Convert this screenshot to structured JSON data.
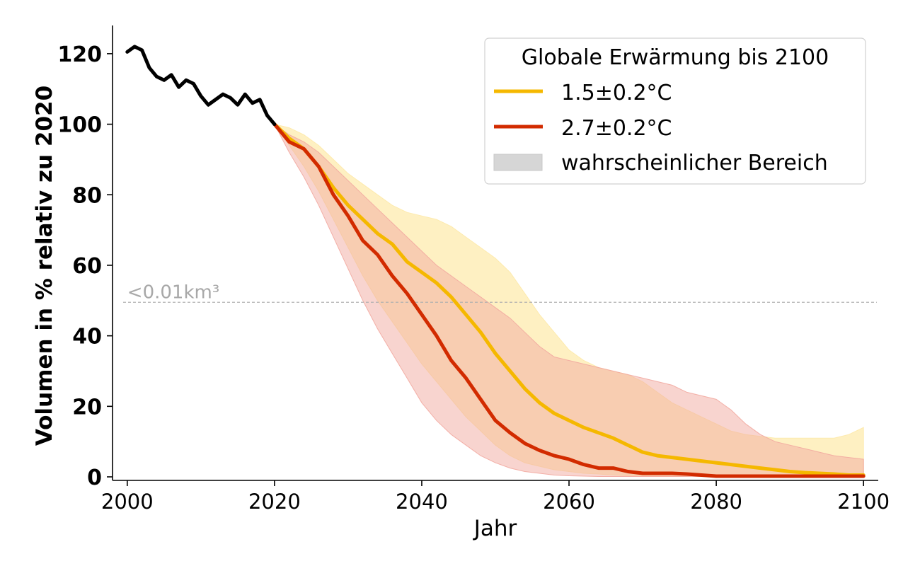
{
  "chart_data": {
    "type": "line",
    "xlabel": "Jahr",
    "ylabel": "Volumen in % relativ zu 2020",
    "xlim": [
      1998,
      2102
    ],
    "ylim": [
      -1,
      128
    ],
    "xticks": [
      "2000",
      "2020",
      "2040",
      "2060",
      "2080",
      "2100"
    ],
    "yticks": [
      "0",
      "20",
      "40",
      "60",
      "80",
      "100",
      "120"
    ],
    "grid": false,
    "legend_position": "top-right",
    "threshold": {
      "y": 49.5,
      "label": "<0.01km³",
      "color": "#b0b0b0"
    },
    "legend": {
      "title": "Globale Erwärmung bis 2100",
      "range_label": "wahrscheinlicher Bereich",
      "range_color": "#d6d6d6"
    },
    "observed": {
      "name": "",
      "color": "#000000",
      "x": [
        2000,
        2001,
        2002,
        2003,
        2004,
        2005,
        2006,
        2007,
        2008,
        2009,
        2010,
        2011,
        2012,
        2013,
        2014,
        2015,
        2016,
        2017,
        2018,
        2019,
        2020
      ],
      "y": [
        120.5,
        122,
        121,
        116,
        113.5,
        112.5,
        114,
        110.5,
        112.5,
        111.5,
        108,
        105.5,
        107,
        108.5,
        107.5,
        105.5,
        108.5,
        106,
        107,
        102.5,
        100
      ]
    },
    "series": [
      {
        "name": "1.5±0.2°C",
        "color": "#f5b800",
        "band_color": "#fde9a8",
        "x": [
          2020,
          2022,
          2024,
          2026,
          2028,
          2030,
          2032,
          2034,
          2036,
          2038,
          2040,
          2042,
          2044,
          2046,
          2048,
          2050,
          2052,
          2054,
          2056,
          2058,
          2060,
          2062,
          2064,
          2066,
          2068,
          2070,
          2072,
          2074,
          2076,
          2078,
          2080,
          2082,
          2084,
          2086,
          2088,
          2090,
          2092,
          2094,
          2096,
          2098,
          2100
        ],
        "y": [
          100,
          96,
          93,
          88,
          82,
          77,
          73,
          69,
          66,
          61,
          58,
          55,
          51,
          46,
          41,
          35,
          30,
          25,
          21,
          18,
          16,
          14,
          12.5,
          11,
          9,
          7,
          6,
          5.5,
          5,
          4.5,
          4,
          3.5,
          3,
          2.5,
          2,
          1.5,
          1.2,
          1,
          0.8,
          0.5,
          0.5
        ],
        "upper": [
          100,
          99,
          97,
          94,
          90,
          86,
          83,
          80,
          77,
          75,
          74,
          73,
          71,
          68,
          65,
          62,
          58,
          52,
          46,
          41,
          36,
          33,
          31,
          30,
          29,
          27,
          24,
          21,
          19,
          17,
          15,
          13,
          12,
          11.5,
          11,
          11,
          11,
          11,
          11,
          12,
          14
        ],
        "lower": [
          100,
          94,
          88,
          81,
          73,
          65,
          57,
          50,
          44,
          38,
          32,
          27,
          22,
          17,
          13,
          9,
          6,
          4,
          3,
          2,
          1.5,
          1,
          0.8,
          0.5,
          0.3,
          0.2,
          0.1,
          0.1,
          0.1,
          0.1,
          0.1,
          0.1,
          0.1,
          0.1,
          0.1,
          0.1,
          0.1,
          0.1,
          0.1,
          0.1,
          0.1
        ]
      },
      {
        "name": "2.7±0.2°C",
        "color": "#d22b00",
        "band_color": "#f2a9a0",
        "x": [
          2020,
          2022,
          2024,
          2026,
          2028,
          2030,
          2032,
          2034,
          2036,
          2038,
          2040,
          2042,
          2044,
          2046,
          2048,
          2050,
          2052,
          2054,
          2056,
          2058,
          2060,
          2062,
          2064,
          2066,
          2068,
          2070,
          2072,
          2074,
          2076,
          2078,
          2080,
          2082,
          2084,
          2086,
          2088,
          2090,
          2092,
          2094,
          2096,
          2098,
          2100
        ],
        "y": [
          100,
          95,
          93,
          88,
          80,
          74,
          67,
          63,
          57,
          52,
          46,
          40,
          33,
          28,
          22,
          16,
          12.5,
          9.5,
          7.5,
          6,
          5,
          3.5,
          2.5,
          2.5,
          1.5,
          1,
          1,
          1,
          0.8,
          0.5,
          0.2,
          0.2,
          0.2,
          0.2,
          0.2,
          0.2,
          0.2,
          0.2,
          0.2,
          0.2,
          0.2
        ],
        "upper": [
          100,
          97,
          95,
          92,
          88,
          84,
          80,
          76,
          72,
          68,
          64,
          60,
          57,
          54,
          51,
          48,
          45,
          41,
          37,
          34,
          33,
          32,
          31,
          30,
          29,
          28,
          27,
          26,
          24,
          23,
          22,
          19,
          15,
          12,
          10,
          9,
          8,
          7,
          6,
          5.5,
          5
        ],
        "lower": [
          100,
          92,
          85,
          77,
          68,
          59,
          50,
          42,
          35,
          28,
          21,
          16,
          12,
          9,
          6,
          4,
          2.5,
          1.5,
          1,
          0.5,
          0.3,
          0.2,
          0.1,
          0.1,
          0.1,
          0.1,
          0.1,
          0.1,
          0.1,
          0.1,
          0.1,
          0.1,
          0.1,
          0.1,
          0.1,
          0.1,
          0.1,
          0.1,
          0.1,
          0.1,
          0.1
        ]
      }
    ]
  }
}
